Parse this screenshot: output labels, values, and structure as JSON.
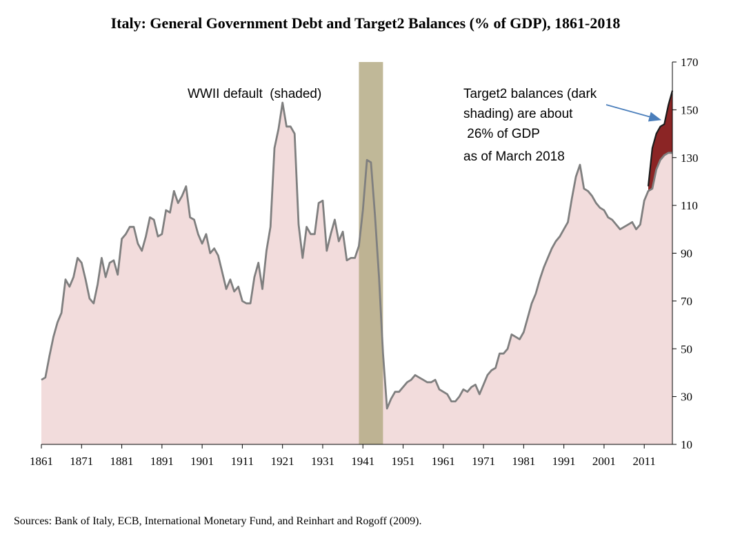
{
  "chart_data": {
    "type": "area",
    "title": "Italy: General Government Debt and Target2 Balances (% of GDP), 1861-2018",
    "xlabel": "",
    "ylabel": "",
    "xlim": [
      1861,
      2018
    ],
    "ylim": [
      10,
      170
    ],
    "x_ticks": [
      "1861",
      "1871",
      "1881",
      "1891",
      "1901",
      "1911",
      "1921",
      "1931",
      "1941",
      "1951",
      "1961",
      "1971",
      "1981",
      "1991",
      "2001",
      "2011"
    ],
    "y_ticks": [
      "170",
      "150",
      "130",
      "110",
      "90",
      "70",
      "50",
      "30",
      "10"
    ],
    "grid": false,
    "shaded_period": {
      "label": "WWII default (shaded)",
      "start": 1940,
      "end": 1946,
      "color": "#b5ab86"
    },
    "series": [
      {
        "name": "General government debt (% of GDP)",
        "fill": "#f2dcdc",
        "line": "#7f7f7f",
        "points": [
          [
            1861,
            37
          ],
          [
            1862,
            38
          ],
          [
            1863,
            47
          ],
          [
            1864,
            55
          ],
          [
            1865,
            61
          ],
          [
            1866,
            65
          ],
          [
            1867,
            79
          ],
          [
            1868,
            76
          ],
          [
            1869,
            80
          ],
          [
            1870,
            88
          ],
          [
            1871,
            86
          ],
          [
            1872,
            79
          ],
          [
            1873,
            71
          ],
          [
            1874,
            69
          ],
          [
            1875,
            77
          ],
          [
            1876,
            88
          ],
          [
            1877,
            80
          ],
          [
            1878,
            86
          ],
          [
            1879,
            87
          ],
          [
            1880,
            81
          ],
          [
            1881,
            96
          ],
          [
            1882,
            98
          ],
          [
            1883,
            101
          ],
          [
            1884,
            101
          ],
          [
            1885,
            94
          ],
          [
            1886,
            91
          ],
          [
            1887,
            97
          ],
          [
            1888,
            105
          ],
          [
            1889,
            104
          ],
          [
            1890,
            97
          ],
          [
            1891,
            98
          ],
          [
            1892,
            108
          ],
          [
            1893,
            107
          ],
          [
            1894,
            116
          ],
          [
            1895,
            111
          ],
          [
            1896,
            114
          ],
          [
            1897,
            118
          ],
          [
            1898,
            105
          ],
          [
            1899,
            104
          ],
          [
            1900,
            98
          ],
          [
            1901,
            94
          ],
          [
            1902,
            98
          ],
          [
            1903,
            90
          ],
          [
            1904,
            92
          ],
          [
            1905,
            89
          ],
          [
            1906,
            82
          ],
          [
            1907,
            75
          ],
          [
            1908,
            79
          ],
          [
            1909,
            74
          ],
          [
            1910,
            76
          ],
          [
            1911,
            70
          ],
          [
            1912,
            69
          ],
          [
            1913,
            69
          ],
          [
            1914,
            80
          ],
          [
            1915,
            86
          ],
          [
            1916,
            75
          ],
          [
            1917,
            91
          ],
          [
            1918,
            101
          ],
          [
            1919,
            134
          ],
          [
            1920,
            142
          ],
          [
            1921,
            153
          ],
          [
            1922,
            143
          ],
          [
            1923,
            143
          ],
          [
            1924,
            140
          ],
          [
            1925,
            102
          ],
          [
            1926,
            88
          ],
          [
            1927,
            101
          ],
          [
            1928,
            98
          ],
          [
            1929,
            98
          ],
          [
            1930,
            111
          ],
          [
            1931,
            112
          ],
          [
            1932,
            91
          ],
          [
            1933,
            98
          ],
          [
            1934,
            104
          ],
          [
            1935,
            95
          ],
          [
            1936,
            99
          ],
          [
            1937,
            87
          ],
          [
            1938,
            88
          ],
          [
            1939,
            88
          ],
          [
            1940,
            93
          ],
          [
            1941,
            108
          ],
          [
            1942,
            129
          ],
          [
            1943,
            128
          ],
          [
            1944,
            106
          ],
          [
            1945,
            80
          ],
          [
            1946,
            48
          ],
          [
            1947,
            25
          ],
          [
            1948,
            29
          ],
          [
            1949,
            32
          ],
          [
            1950,
            32
          ],
          [
            1951,
            34
          ],
          [
            1952,
            36
          ],
          [
            1953,
            37
          ],
          [
            1954,
            39
          ],
          [
            1955,
            38
          ],
          [
            1956,
            37
          ],
          [
            1957,
            36
          ],
          [
            1958,
            36
          ],
          [
            1959,
            37
          ],
          [
            1960,
            33
          ],
          [
            1961,
            32
          ],
          [
            1962,
            31
          ],
          [
            1963,
            28
          ],
          [
            1964,
            28
          ],
          [
            1965,
            30
          ],
          [
            1966,
            33
          ],
          [
            1967,
            32
          ],
          [
            1968,
            34
          ],
          [
            1969,
            35
          ],
          [
            1970,
            31
          ],
          [
            1971,
            35
          ],
          [
            1972,
            39
          ],
          [
            1973,
            41
          ],
          [
            1974,
            42
          ],
          [
            1975,
            48
          ],
          [
            1976,
            48
          ],
          [
            1977,
            50
          ],
          [
            1978,
            56
          ],
          [
            1979,
            55
          ],
          [
            1980,
            54
          ],
          [
            1981,
            57
          ],
          [
            1982,
            63
          ],
          [
            1983,
            69
          ],
          [
            1984,
            73
          ],
          [
            1985,
            79
          ],
          [
            1986,
            84
          ],
          [
            1987,
            88
          ],
          [
            1988,
            92
          ],
          [
            1989,
            95
          ],
          [
            1990,
            97
          ],
          [
            1991,
            100
          ],
          [
            1992,
            103
          ],
          [
            1993,
            113
          ],
          [
            1994,
            122
          ],
          [
            1995,
            127
          ],
          [
            1996,
            117
          ],
          [
            1997,
            116
          ],
          [
            1998,
            114
          ],
          [
            1999,
            111
          ],
          [
            2000,
            109
          ],
          [
            2001,
            108
          ],
          [
            2002,
            105
          ],
          [
            2003,
            104
          ],
          [
            2004,
            102
          ],
          [
            2005,
            100
          ],
          [
            2006,
            101
          ],
          [
            2007,
            102
          ],
          [
            2008,
            103
          ],
          [
            2009,
            100
          ],
          [
            2010,
            102
          ],
          [
            2011,
            112
          ],
          [
            2012,
            116
          ],
          [
            2013,
            117
          ],
          [
            2014,
            125
          ],
          [
            2015,
            129
          ],
          [
            2016,
            131
          ],
          [
            2017,
            132
          ],
          [
            2018,
            132
          ]
        ]
      },
      {
        "name": "Target2 balances (dark shading, stacked on debt)",
        "fill": "#8b2525",
        "line": "#1a1a1a",
        "points": [
          [
            2012,
            118
          ],
          [
            2013,
            134
          ],
          [
            2014,
            140
          ],
          [
            2015,
            143
          ],
          [
            2016,
            144
          ],
          [
            2017,
            152
          ],
          [
            2018,
            158
          ]
        ]
      }
    ],
    "annotations": [
      {
        "id": "wwii",
        "lines": [
          "WWII default  (shaded)"
        ]
      },
      {
        "id": "target2",
        "lines": [
          "Target2 balances (dark",
          "shading) are about",
          " 26% of GDP",
          "as of March 2018"
        ],
        "arrow_to": [
          2016,
          147
        ]
      }
    ],
    "source": "Sources: Bank of Italy, ECB, International Monetary Fund, and Reinhart and Rogoff (2009)."
  }
}
